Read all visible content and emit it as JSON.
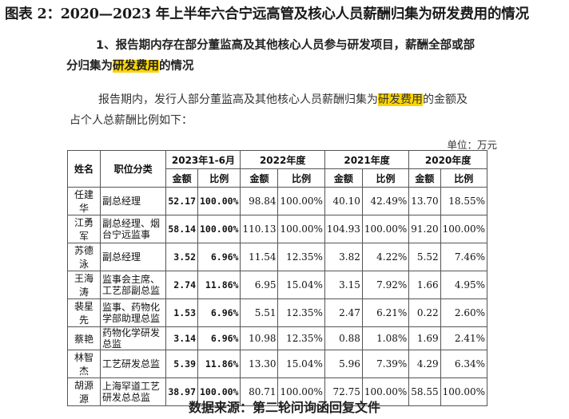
{
  "figure_title": "图表 2：2020—2023 年上半年六合宁远高管及核心人员薪酬归集为研发费用的情况",
  "section": {
    "heading_line1": "1、报告期内存在部分董监高及其他核心人员参与研发项目，薪酬全部或部",
    "heading_line2_before": "分归集为",
    "heading_line2_highlight": "研发费用",
    "heading_line2_after": "的情况",
    "para_line1_before": "报告期内，发行人部分董监高及其他核心人员薪酬归集为",
    "para_line1_highlight": "研发费用",
    "para_line1_after": "的金额及",
    "para_line2": "占个人总薪酬比例如下："
  },
  "unit_label": "单位：万元",
  "table": {
    "col_name": "姓名",
    "col_position": "职位分类",
    "periods": [
      "2023年1-6月",
      "2022年度",
      "2021年度",
      "2020年度"
    ],
    "sub_amount": "金额",
    "sub_ratio": "比例",
    "rows": [
      {
        "name": "任建华",
        "position": "副总经理",
        "v": [
          "52.17",
          "100.00%",
          "98.84",
          "100.00%",
          "40.10",
          "42.49%",
          "13.70",
          "18.55%"
        ]
      },
      {
        "name": "江勇军",
        "position": "副总经理、烟台宁远监事",
        "v": [
          "58.14",
          "100.00%",
          "110.13",
          "100.00%",
          "104.93",
          "100.00%",
          "91.20",
          "100.00%"
        ]
      },
      {
        "name": "苏德泳",
        "position": "副总经理",
        "v": [
          "3.52",
          "6.96%",
          "11.54",
          "12.35%",
          "3.82",
          "4.22%",
          "5.52",
          "7.46%"
        ]
      },
      {
        "name": "王海涛",
        "position": "监事会主席、工艺部副总监",
        "v": [
          "2.74",
          "11.86%",
          "6.95",
          "15.04%",
          "3.15",
          "7.92%",
          "1.66",
          "4.95%"
        ]
      },
      {
        "name": "裴星先",
        "position": "监事、药物化学部助理总监",
        "v": [
          "1.53",
          "6.96%",
          "5.51",
          "12.35%",
          "2.47",
          "6.21%",
          "0.22",
          "2.60%"
        ]
      },
      {
        "name": "蔡艳",
        "position": "药物化学研发总监",
        "v": [
          "3.14",
          "6.96%",
          "10.98",
          "12.35%",
          "0.88",
          "1.08%",
          "1.69",
          "2.41%"
        ]
      },
      {
        "name": "林智杰",
        "position": "工艺研发总监",
        "v": [
          "5.39",
          "11.86%",
          "13.30",
          "15.04%",
          "5.96",
          "7.39%",
          "4.29",
          "6.34%"
        ]
      },
      {
        "name": "胡源源",
        "position": "上海罕道工艺研发总总监",
        "v": [
          "38.97",
          "100.00%",
          "80.71",
          "100.00%",
          "72.75",
          "100.00%",
          "58.55",
          "100.00%"
        ]
      }
    ]
  },
  "source_note": "数据来源：第二轮问询函回复文件"
}
